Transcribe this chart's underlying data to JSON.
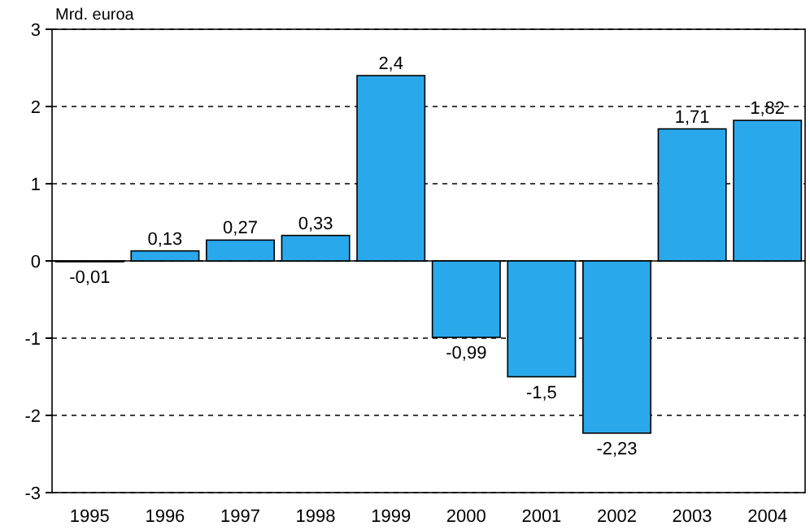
{
  "chart_data": {
    "type": "bar",
    "ylabel": "Mrd. euroa",
    "categories": [
      "1995",
      "1996",
      "1997",
      "1998",
      "1999",
      "2000",
      "2001",
      "2002",
      "2003",
      "2004"
    ],
    "values": [
      -0.01,
      0.13,
      0.27,
      0.33,
      2.4,
      -0.99,
      -1.5,
      -2.23,
      1.71,
      1.82
    ],
    "value_labels": [
      "-0,01",
      "0,13",
      "0,27",
      "0,33",
      "2,4",
      "-0,99",
      "-1,5",
      "-2,23",
      "1,71",
      "1,82"
    ],
    "color": "#2aa8ec",
    "ylim": [
      -3,
      3
    ],
    "yticks": [
      -3,
      -2,
      -1,
      0,
      1,
      2,
      3
    ],
    "grid": "y"
  }
}
